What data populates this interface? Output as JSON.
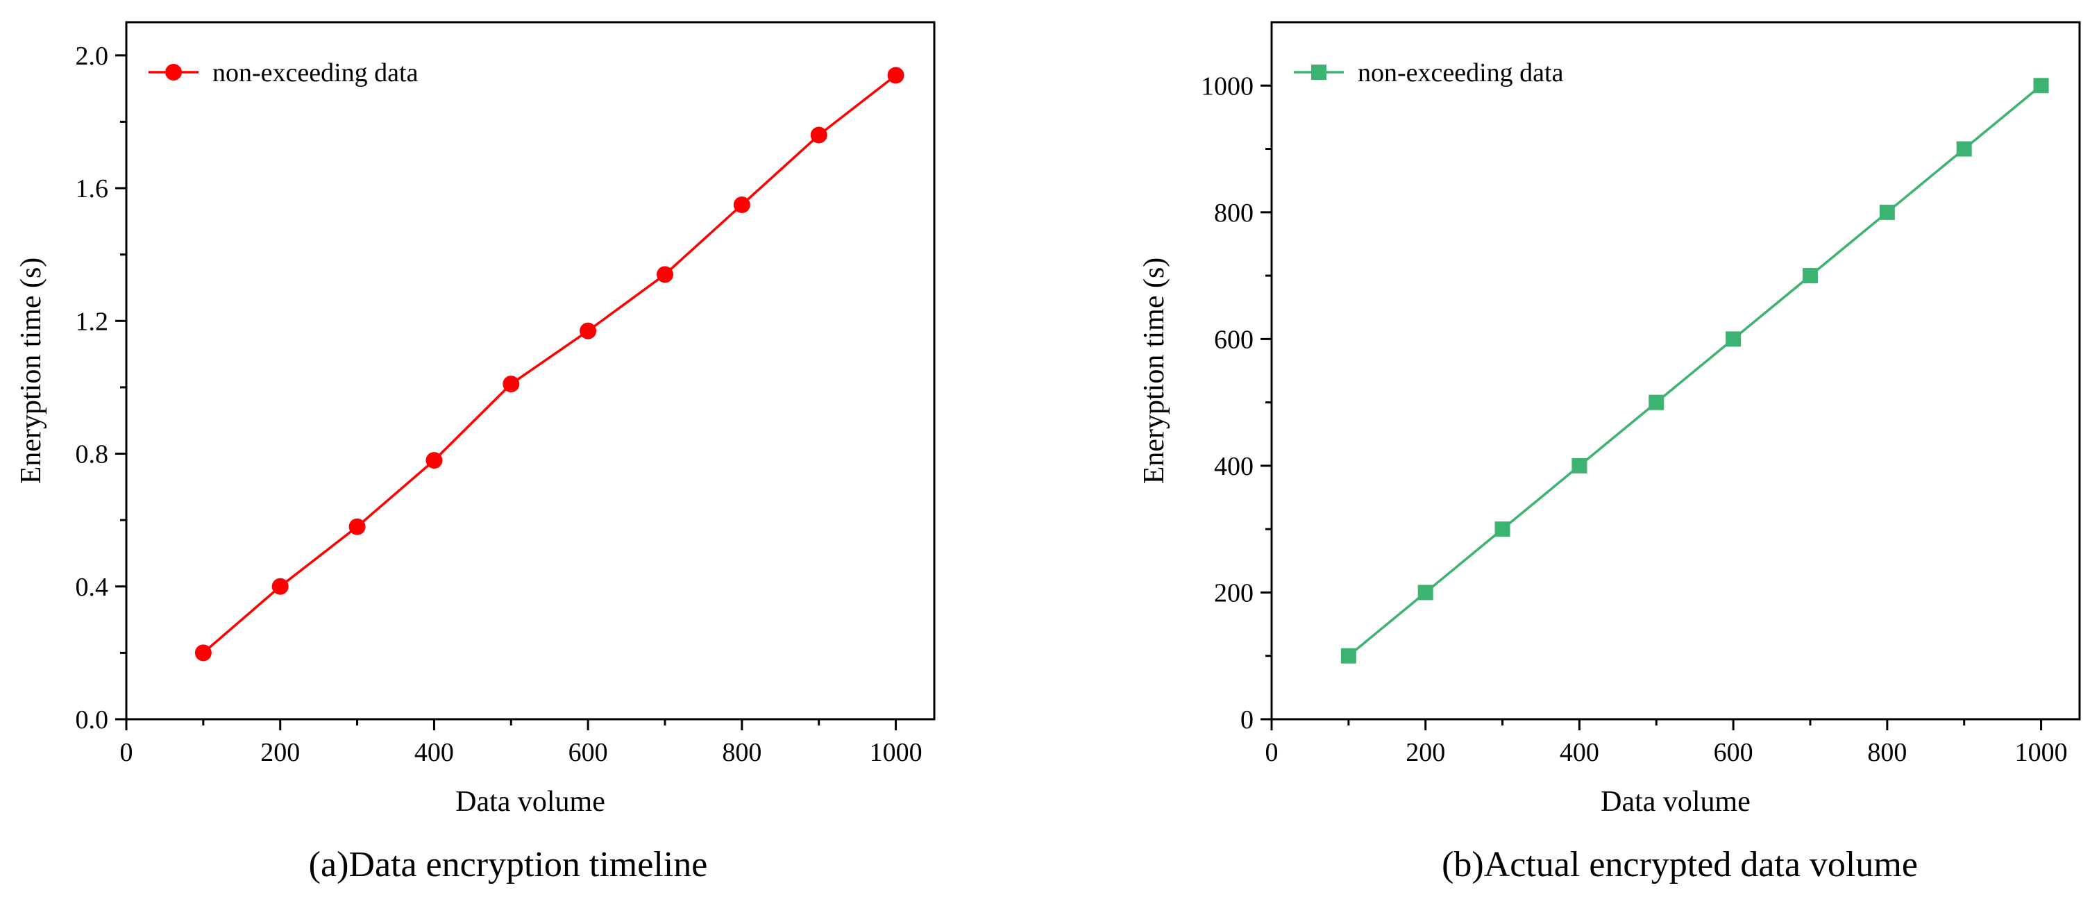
{
  "chart_data": [
    {
      "type": "line",
      "caption": "(a)Data encryption timeline",
      "xlabel": "Data volume",
      "ylabel": "Eneryption time (s)",
      "xlim": [
        0,
        1050
      ],
      "ylim": [
        0,
        2.1
      ],
      "xticks": [
        0,
        200,
        400,
        600,
        800,
        1000
      ],
      "xtick_labels": [
        "0",
        "200",
        "400",
        "600",
        "800",
        "1000"
      ],
      "yticks": [
        0,
        0.4,
        0.8,
        1.2,
        1.6,
        2.0
      ],
      "ytick_labels": [
        "0.0",
        "0.4",
        "0.8",
        "1.2",
        "1.6",
        "2.0"
      ],
      "legend_position": "top-left",
      "grid": false,
      "series": [
        {
          "name": "non-exceeding data",
          "color": "#ff0000",
          "marker": "circle",
          "x": [
            100,
            200,
            300,
            400,
            500,
            600,
            700,
            800,
            900,
            1000
          ],
          "y": [
            0.2,
            0.4,
            0.58,
            0.78,
            1.01,
            1.17,
            1.34,
            1.55,
            1.76,
            1.94
          ]
        }
      ]
    },
    {
      "type": "line",
      "caption": "(b)Actual encrypted data volume",
      "xlabel": "Data volume",
      "ylabel": "Eneryption time (s)",
      "xlim": [
        0,
        1050
      ],
      "ylim": [
        0,
        1100
      ],
      "xticks": [
        0,
        200,
        400,
        600,
        800,
        1000
      ],
      "xtick_labels": [
        "0",
        "200",
        "400",
        "600",
        "800",
        "1000"
      ],
      "yticks": [
        0,
        200,
        400,
        600,
        800,
        1000
      ],
      "ytick_labels": [
        "0",
        "200",
        "400",
        "600",
        "800",
        "1000"
      ],
      "legend_position": "top-left",
      "grid": false,
      "series": [
        {
          "name": "non-exceeding data",
          "color": "#3cb371",
          "marker": "square",
          "x": [
            100,
            200,
            300,
            400,
            500,
            600,
            700,
            800,
            900,
            1000
          ],
          "y": [
            100,
            200,
            300,
            400,
            500,
            600,
            700,
            800,
            900,
            1000
          ]
        }
      ]
    }
  ]
}
